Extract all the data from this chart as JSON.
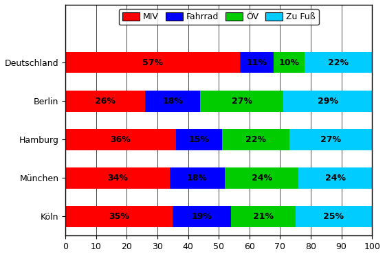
{
  "categories": [
    "Deutschland",
    "Berlin",
    "Hamburg",
    "München",
    "Köln"
  ],
  "segments": [
    "MIV",
    "Fahrrad",
    "ÖV",
    "Zu Fuß"
  ],
  "values": [
    [
      57,
      11,
      10,
      22
    ],
    [
      26,
      18,
      27,
      29
    ],
    [
      36,
      15,
      22,
      27
    ],
    [
      34,
      18,
      24,
      24
    ],
    [
      35,
      19,
      21,
      25
    ]
  ],
  "colors": [
    "#ff0000",
    "#0000ff",
    "#00cc00",
    "#00ccff"
  ],
  "xlim": [
    0,
    100
  ],
  "xticks": [
    0,
    10,
    20,
    30,
    40,
    50,
    60,
    70,
    80,
    90,
    100
  ],
  "bar_height": 0.55,
  "label_fontsize": 9,
  "tick_fontsize": 9,
  "legend_fontsize": 9,
  "background_color": "#ffffff"
}
